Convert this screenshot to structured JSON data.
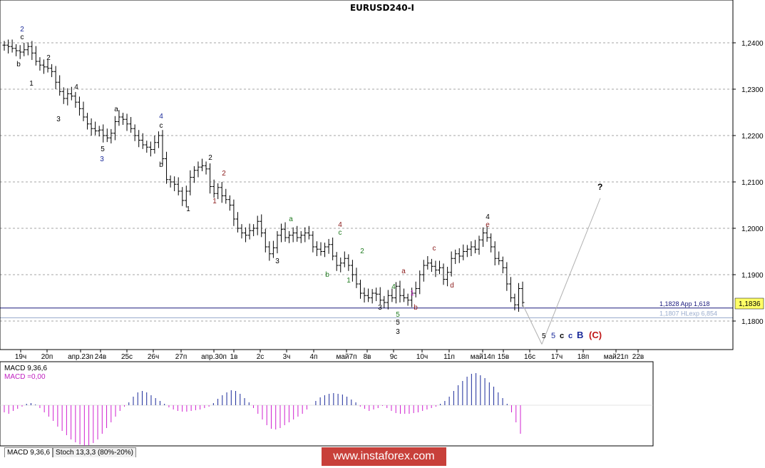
{
  "title": "EURUSD240-I",
  "chart_data": {
    "type": "candlestick",
    "title": "EURUSD240-I",
    "y_ticks": [
      "1,2400",
      "1,2300",
      "1,2200",
      "1,2100",
      "1,2000",
      "1,1900",
      "1,1800"
    ],
    "ylim": [
      1.1735,
      1.2485
    ],
    "x_ticks": [
      "19ч",
      "20п",
      "апр.23п",
      "24в",
      "25с",
      "26ч",
      "27п",
      "апр.30п",
      "1в",
      "2с",
      "3ч",
      "4п",
      "май7п",
      "8в",
      "9с",
      "10ч",
      "11п",
      "май14п",
      "15в",
      "16с",
      "17ч",
      "18п",
      "май21п",
      "22в"
    ],
    "current_price": "1,1836",
    "levels": [
      {
        "value": 1.1828,
        "label": "1,1828 App 1,618",
        "color": "#1b1b7e"
      },
      {
        "value": 1.1807,
        "label": "1,1807 HLexp 6,854",
        "color": "#9aaccd"
      }
    ],
    "projection_end_label": "?",
    "wave_labels": [
      {
        "text": "2",
        "color": "#1a2a9a"
      },
      {
        "text": "c",
        "color": "#000000"
      },
      {
        "text": "b",
        "color": "#000000"
      },
      {
        "text": "1",
        "color": "#000000"
      },
      {
        "text": "2",
        "color": "#000000"
      },
      {
        "text": "3",
        "color": "#000000"
      },
      {
        "text": "4",
        "color": "#000000"
      },
      {
        "text": "5",
        "color": "#000000"
      },
      {
        "text": "3",
        "color": "#1a2a9a"
      },
      {
        "text": "a",
        "color": "#000000"
      },
      {
        "text": "4",
        "color": "#1a2a9a"
      },
      {
        "text": "c",
        "color": "#000000"
      },
      {
        "text": "b",
        "color": "#000000"
      },
      {
        "text": "1",
        "color": "#000000"
      },
      {
        "text": "2",
        "color": "#000000"
      },
      {
        "text": "2",
        "color": "#8b1a1a"
      },
      {
        "text": "1",
        "color": "#8b1a1a"
      },
      {
        "text": "3",
        "color": "#000000"
      },
      {
        "text": "a",
        "color": "#1e7a1e"
      },
      {
        "text": "b",
        "color": "#1e7a1e"
      },
      {
        "text": "4",
        "color": "#8b1a1a"
      },
      {
        "text": "c",
        "color": "#1e7a1e"
      },
      {
        "text": "2",
        "color": "#1e7a1e"
      },
      {
        "text": "1",
        "color": "#1e7a1e"
      },
      {
        "text": "4",
        "color": "#1e7a1e"
      },
      {
        "text": "3",
        "color": "#000000"
      },
      {
        "text": "5",
        "color": "#1e7a1e"
      },
      {
        "text": "5",
        "color": "#000000"
      },
      {
        "text": "3",
        "color": "#000000"
      },
      {
        "text": "1",
        "color": "#c020c0"
      },
      {
        "text": "a",
        "color": "#8b1a1a"
      },
      {
        "text": "b",
        "color": "#8b1a1a"
      },
      {
        "text": "c",
        "color": "#8b1a1a"
      },
      {
        "text": "d",
        "color": "#8b1a1a"
      },
      {
        "text": "4",
        "color": "#000000"
      },
      {
        "text": "e",
        "color": "#8b1a1a"
      }
    ],
    "projection_labels": [
      {
        "text": "5",
        "color": "#000000"
      },
      {
        "text": "5",
        "color": "#1a2a9a"
      },
      {
        "text": "c",
        "color": "#000000"
      },
      {
        "text": "c",
        "color": "#1a2a9a"
      },
      {
        "text": "B",
        "color": "#1a2a9a"
      },
      {
        "text": "(C)",
        "color": "#c01818"
      }
    ],
    "price_series": [
      1.2395,
      1.2392,
      1.2388,
      1.2383,
      1.238,
      1.2385,
      1.2392,
      1.2378,
      1.236,
      1.2352,
      1.2348,
      1.2345,
      1.2338,
      1.2315,
      1.2295,
      1.228,
      1.229,
      1.2285,
      1.2272,
      1.2258,
      1.224,
      1.2225,
      1.2215,
      1.221,
      1.2212,
      1.22,
      1.2195,
      1.2205,
      1.223,
      1.224,
      1.2235,
      1.2225,
      1.2215,
      1.22,
      1.219,
      1.218,
      1.2175,
      1.217,
      1.2185,
      1.22,
      1.215,
      1.2105,
      1.21,
      1.2095,
      1.208,
      1.206,
      1.208,
      1.211,
      1.2125,
      1.2132,
      1.2135,
      1.2128,
      1.209,
      1.2075,
      1.2088,
      1.207,
      1.2062,
      1.205,
      1.202,
      1.2,
      1.199,
      1.1985,
      1.1995,
      1.2,
      1.2015,
      1.199,
      1.196,
      1.1945,
      1.1958,
      1.1985,
      1.1998,
      1.198,
      1.1985,
      1.199,
      1.198,
      1.1985,
      1.199,
      1.1985,
      1.196,
      1.1955,
      1.195,
      1.196,
      1.1965,
      1.194,
      1.192,
      1.1925,
      1.1935,
      1.192,
      1.19,
      1.188,
      1.186,
      1.1855,
      1.185,
      1.186,
      1.1858,
      1.1845,
      1.184,
      1.1855,
      1.185,
      1.1875,
      1.1855,
      1.185,
      1.1845,
      1.186,
      1.187,
      1.19,
      1.192,
      1.1925,
      1.1918,
      1.191,
      1.1915,
      1.189,
      1.1905,
      1.1935,
      1.1945,
      1.194,
      1.195,
      1.1955,
      1.196,
      1.1955,
      1.1975,
      1.199,
      1.198,
      1.196,
      1.1935,
      1.193,
      1.1915,
      1.188,
      1.185,
      1.1835,
      1.187,
      1.184
    ],
    "projection_line": [
      [
        1.1836,
        1.175
      ],
      [
        1.175,
        1.2065
      ]
    ],
    "indicator": {
      "name": "MACD 9,36,6",
      "value_label": "MACD =0,00",
      "values": [
        -0.001,
        -0.0012,
        -0.0008,
        -0.0005,
        -0.0002,
        0.0002,
        0.0003,
        0.0001,
        -0.0004,
        -0.001,
        -0.0016,
        -0.0022,
        -0.003,
        -0.0036,
        -0.0042,
        -0.0048,
        -0.0052,
        -0.0055,
        -0.0057,
        -0.0056,
        -0.0053,
        -0.0048,
        -0.004,
        -0.0032,
        -0.0024,
        -0.0016,
        -0.0008,
        -0.0002,
        0.0004,
        0.0012,
        0.0018,
        0.002,
        0.0018,
        0.0014,
        0.001,
        0.0006,
        0.0002,
        -0.0003,
        -0.0006,
        -0.0008,
        -0.0009,
        -0.0009,
        -0.0008,
        -0.0007,
        -0.0006,
        -0.0004,
        -0.0002,
        0.0003,
        0.0009,
        0.0014,
        0.0018,
        0.0021,
        0.002,
        0.0016,
        0.001,
        0.0004,
        -0.0004,
        -0.0012,
        -0.002,
        -0.0028,
        -0.0033,
        -0.0034,
        -0.0032,
        -0.0028,
        -0.0024,
        -0.002,
        -0.0016,
        -0.0012,
        -0.0006,
        0.0,
        0.0006,
        0.0011,
        0.0014,
        0.0016,
        0.0017,
        0.0016,
        0.0015,
        0.0012,
        0.0008,
        0.0004,
        -0.0002,
        -0.0005,
        -0.0008,
        -0.0006,
        -0.0004,
        -0.0001,
        -0.0004,
        -0.0008,
        -0.0011,
        -0.0012,
        -0.0012,
        -0.0012,
        -0.0011,
        -0.001,
        -0.0008,
        -0.0006,
        -0.0004,
        -0.0002,
        0.0002,
        0.0006,
        0.0012,
        0.002,
        0.0028,
        0.0034,
        0.004,
        0.0044,
        0.0045,
        0.0042,
        0.0038,
        0.0032,
        0.0026,
        0.0018,
        0.001,
        0.0002,
        -0.001,
        -0.0024,
        -0.004
      ]
    }
  },
  "tabs": [
    "MACD 9,36,6",
    "Stoch 13,3,3 (80%-20%)"
  ],
  "watermark": "www.instaforex.com"
}
